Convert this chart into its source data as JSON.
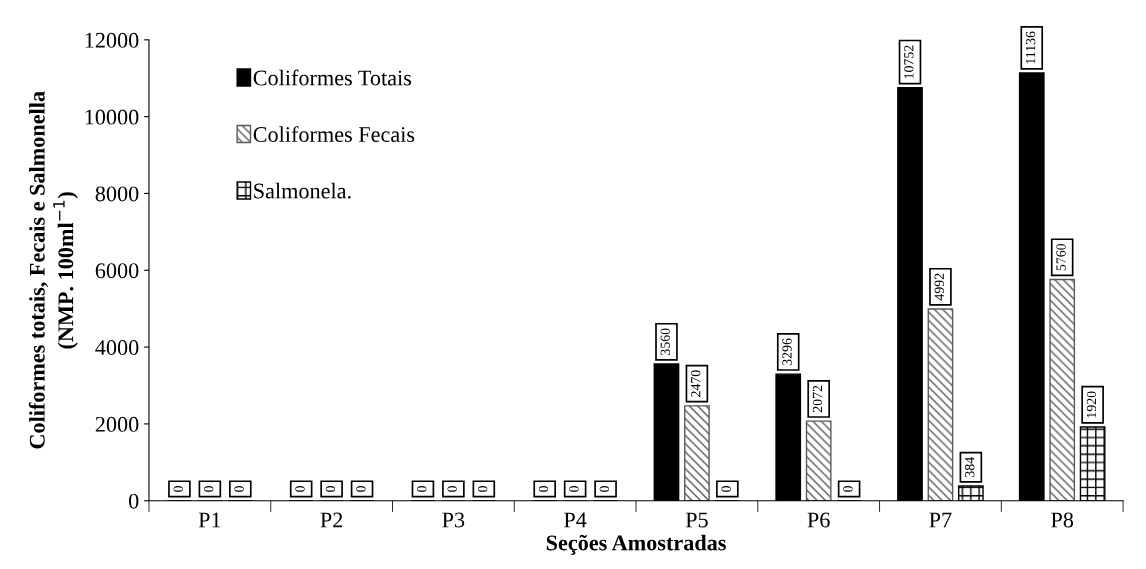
{
  "chart_data": {
    "type": "bar",
    "xlabel": "Seções Amostradas",
    "ylabel": "Coliformes totais, Fecais e Salmonella\n(NMP. 100ml$^{−1}$)",
    "categories": [
      "P1",
      "P2",
      "P3",
      "P4",
      "P5",
      "P6",
      "P7",
      "P8"
    ],
    "series": [
      {
        "name": "Coliformes Totais",
        "color": "#000000",
        "values": [
          0,
          0,
          0,
          0,
          3560,
          3296,
          10752,
          11136
        ]
      },
      {
        "name": "Coliformes Fecais",
        "color": "#595959",
        "values": [
          0,
          0,
          0,
          0,
          2470,
          2072,
          4992,
          5760
        ]
      },
      {
        "name": "Salmonela.",
        "color": "#000000",
        "values": [
          0,
          0,
          0,
          0,
          0,
          0,
          384,
          1920
        ]
      }
    ],
    "ylim": [
      0,
      12000
    ],
    "yticks": [
      0,
      2000,
      4000,
      6000,
      8000,
      10000,
      12000
    ],
    "data_labels": true,
    "legend": "top left",
    "grid": false
  }
}
